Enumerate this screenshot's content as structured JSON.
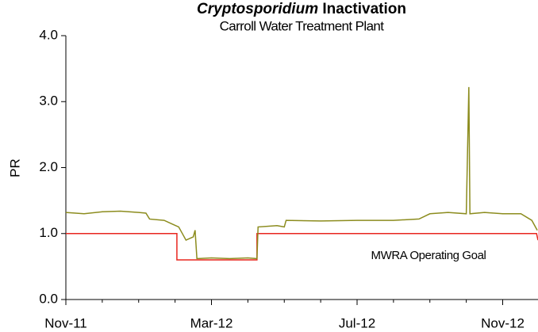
{
  "chart_data": {
    "type": "line",
    "title": {
      "italic": "Cryptosporidium",
      "rest": "Inactivation"
    },
    "subtitle": "Carroll Water Treatment Plant",
    "y_label": "PR",
    "xlim": [
      0,
      12.97
    ],
    "xticks": [
      {
        "value": 0,
        "label": "Nov-11"
      },
      {
        "value": 4,
        "label": "Mar-12"
      },
      {
        "value": 8,
        "label": "Jul-12"
      },
      {
        "value": 12,
        "label": "Nov-12"
      }
    ],
    "x_minor_ticks": [
      1,
      2,
      3,
      5,
      6,
      7,
      9,
      10,
      11
    ],
    "ylim": [
      0,
      4
    ],
    "yticks": [
      {
        "value": 0,
        "label": "0.0"
      },
      {
        "value": 1,
        "label": "1.0"
      },
      {
        "value": 2,
        "label": "2.0"
      },
      {
        "value": 3,
        "label": "3.0"
      },
      {
        "value": 4,
        "label": "4.0"
      }
    ],
    "series": [
      {
        "color": "#8c8c1e",
        "x": [
          0,
          0.5,
          1,
          1.5,
          2,
          2.2,
          2.3,
          2.7,
          2.9,
          3.1,
          3.3,
          3.5,
          3.55,
          3.6,
          4,
          4.5,
          5,
          5.25,
          5.28,
          5.8,
          6.0,
          6.05,
          7,
          8,
          9,
          9.7,
          10.0,
          10.5,
          11.0,
          11.07,
          11.1,
          11.5,
          12,
          12.5,
          12.8,
          12.95
        ],
        "values": [
          1.32,
          1.3,
          1.33,
          1.34,
          1.32,
          1.31,
          1.22,
          1.2,
          1.15,
          1.1,
          0.9,
          0.95,
          1.05,
          0.62,
          0.63,
          0.62,
          0.63,
          0.62,
          1.1,
          1.12,
          1.1,
          1.2,
          1.19,
          1.2,
          1.2,
          1.22,
          1.3,
          1.32,
          1.3,
          3.22,
          1.3,
          1.32,
          1.3,
          1.3,
          1.2,
          1.05
        ]
      },
      {
        "name": "MWRA Operating Goal",
        "color": "#e8261f",
        "x": [
          0,
          3.05,
          3.05,
          5.25,
          5.25,
          12.93,
          12.97
        ],
        "values": [
          1,
          1,
          0.6,
          0.6,
          1,
          1,
          0.9
        ]
      }
    ]
  }
}
